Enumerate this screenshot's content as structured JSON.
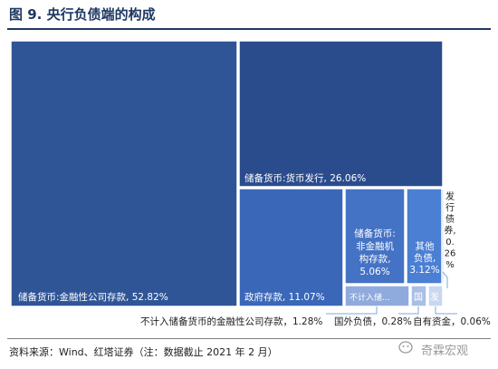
{
  "header": {
    "title": "图 9. 央行负债端的构成"
  },
  "chart_data": {
    "type": "treemap",
    "title": "图 9. 央行负债端的构成",
    "unit": "%",
    "items": [
      {
        "name": "储备货币:金融性公司存款",
        "value": 52.82,
        "label": "储备货币:金融性公司存款, 52.82%",
        "color": "#2f5597"
      },
      {
        "name": "储备货币:货币发行",
        "value": 26.06,
        "label": "储备货币:货币发行, 26.06%",
        "color": "#2b4c8c"
      },
      {
        "name": "政府存款",
        "value": 11.07,
        "label": "政府存款, 11.07%",
        "color": "#3a67b7"
      },
      {
        "name": "储备货币:非金融机构存款",
        "value": 5.06,
        "label_lines": [
          "储备货币:",
          "非金融机",
          "构存款,",
          "5.06%"
        ],
        "color": "#4472c4"
      },
      {
        "name": "其他负债",
        "value": 3.12,
        "label_lines": [
          "其他",
          "负债,",
          "3.12%"
        ],
        "color": "#4a7fd4"
      },
      {
        "name": "不计入储备货币的金融性公司存款",
        "value": 1.28,
        "label": "不计入储...",
        "callout": "不计入储备货币的金融性公司存款，1.28%",
        "color": "#8faadc"
      },
      {
        "name": "国外负债",
        "value": 0.28,
        "label": "国",
        "callout": "国外负债，0.28%",
        "color": "#a9bfe6"
      },
      {
        "name": "发行债券",
        "value": 0.26,
        "label_lines": [
          "发",
          "行",
          "债",
          "券,",
          "0.",
          "26",
          "%"
        ],
        "color": "#b4c7e7"
      },
      {
        "name": "自有资金",
        "value": 0.06,
        "label": "发",
        "callout": "自有资金，0.06%",
        "color": "#c9d7ef"
      }
    ]
  },
  "footer": {
    "source": "资料来源：Wind、红塔证券（注：数据截止 2021 年 2 月）",
    "watermark": "奇霖宏观"
  }
}
